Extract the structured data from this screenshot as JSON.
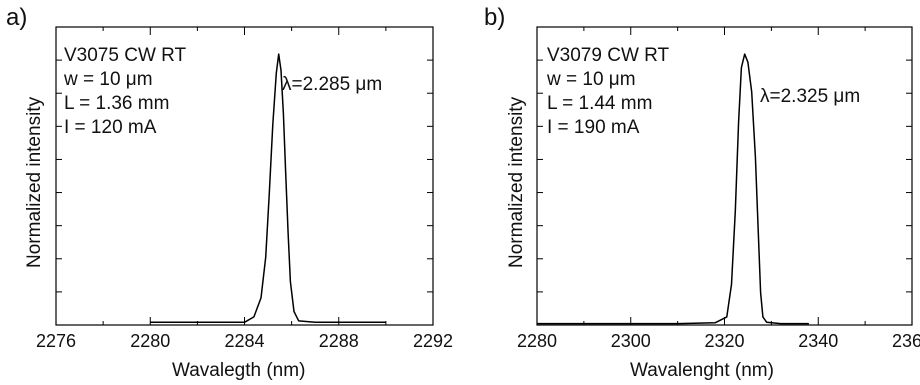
{
  "chart_data": [
    {
      "panel_label": "a)",
      "type": "line",
      "xlabel": "Wavalegth (nm)",
      "ylabel": "Normalized intensity",
      "xlim": [
        2276,
        2292
      ],
      "ylim": [
        0,
        1.1
      ],
      "x_ticks": [
        2276,
        2280,
        2284,
        2288,
        2292
      ],
      "x_tick_labels": [
        "2276",
        "2280",
        "2284",
        "2288",
        "2292"
      ],
      "y_tick_labels_shown": false,
      "annotations": [
        "V3075 CW RT",
        "w = 10 μm",
        "L = 1.36 mm",
        "I = 120 mA"
      ],
      "peak_label": "λ=2.285 μm",
      "series": [
        {
          "x": [
            2280.0,
            2281.0,
            2282.0,
            2283.0,
            2284.0,
            2284.4,
            2284.7,
            2284.9,
            2285.05,
            2285.2,
            2285.35,
            2285.45,
            2285.55,
            2285.65,
            2285.75,
            2285.85,
            2285.95,
            2286.1,
            2286.3,
            2287.0,
            2288.0,
            2289.0,
            2290.0
          ],
          "y": [
            0.01,
            0.01,
            0.01,
            0.01,
            0.01,
            0.03,
            0.1,
            0.25,
            0.48,
            0.74,
            0.93,
            1.0,
            0.94,
            0.78,
            0.56,
            0.34,
            0.16,
            0.05,
            0.015,
            0.01,
            0.01,
            0.01,
            0.01
          ]
        }
      ]
    },
    {
      "panel_label": "b)",
      "type": "line",
      "xlabel": "Wavalenght (nm)",
      "ylabel": "Normalized intensity",
      "xlim": [
        2280,
        2360
      ],
      "ylim": [
        0,
        1.1
      ],
      "x_ticks": [
        2280,
        2300,
        2320,
        2340,
        2360
      ],
      "x_tick_labels": [
        "2280",
        "2300",
        "2320",
        "2340",
        "2360"
      ],
      "y_tick_labels_shown": false,
      "annotations": [
        "V3079  CW RT",
        "w = 10 μm",
        "L = 1.44 mm",
        "I = 190 mA"
      ],
      "peak_label": "λ=2.325 μm",
      "series": [
        {
          "x": [
            2280,
            2290,
            2300,
            2310,
            2318,
            2320.5,
            2321.5,
            2322.3,
            2323.0,
            2323.6,
            2324.3,
            2325.0,
            2325.8,
            2326.6,
            2327.2,
            2327.7,
            2328.2,
            2329,
            2332,
            2338
          ],
          "y": [
            0.005,
            0.005,
            0.005,
            0.005,
            0.008,
            0.03,
            0.15,
            0.42,
            0.75,
            0.95,
            1.0,
            0.97,
            0.86,
            0.62,
            0.35,
            0.12,
            0.03,
            0.01,
            0.005,
            0.005
          ]
        }
      ]
    }
  ]
}
